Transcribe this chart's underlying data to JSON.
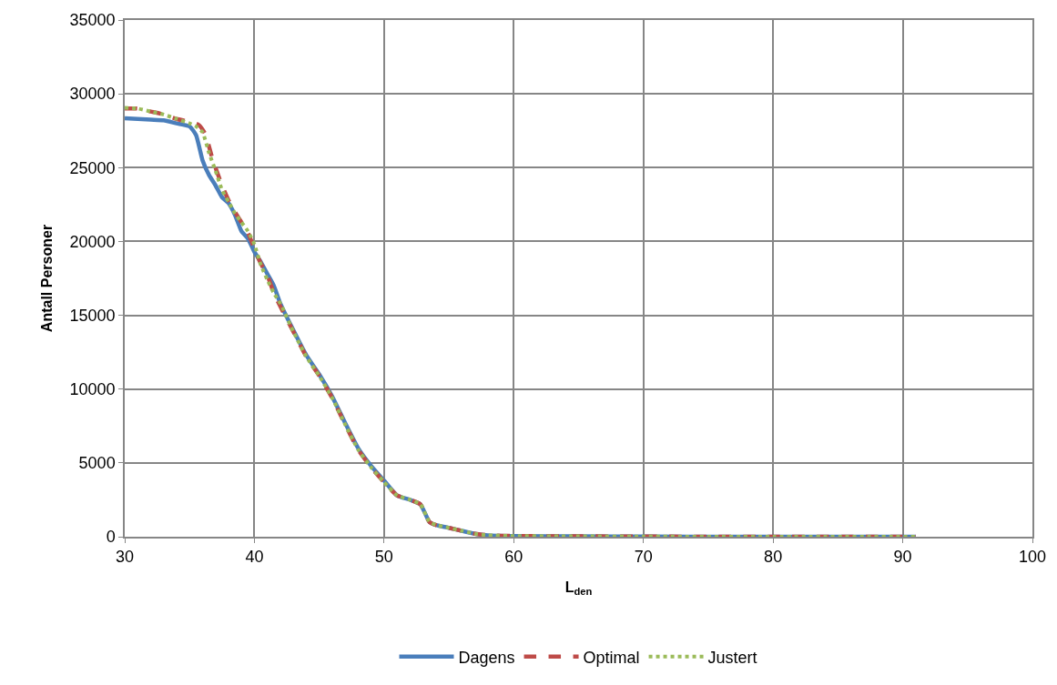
{
  "chart_data": {
    "type": "line",
    "xlabel": "L$_{den}$",
    "ylabel": "Antall Personer",
    "xlim": [
      30,
      100
    ],
    "xticks": [
      30,
      40,
      50,
      60,
      70,
      80,
      90,
      100
    ],
    "ylim": [
      0,
      35000
    ],
    "yticks": [
      0,
      5000,
      10000,
      15000,
      20000,
      25000,
      30000,
      35000
    ],
    "grid": true,
    "legend": "bottom",
    "marker": "none",
    "series": [
      {
        "name": "Dagens",
        "color": "#4a7ebb",
        "line_style": "solid",
        "x": [
          30,
          32,
          33,
          34,
          35,
          35.5,
          36,
          36.5,
          37,
          37.5,
          38,
          38.5,
          39,
          39.5,
          40,
          40.5,
          41,
          41.5,
          42,
          43,
          44,
          45,
          46,
          47,
          48,
          49,
          50,
          51,
          52,
          52.8,
          53.5,
          54,
          55,
          56,
          57,
          58,
          60,
          65,
          70,
          80,
          91
        ],
        "values": [
          28350,
          28250,
          28200,
          28000,
          27800,
          27200,
          25500,
          24500,
          23800,
          23000,
          22600,
          21800,
          20700,
          20200,
          19300,
          18600,
          17800,
          17000,
          15800,
          14000,
          12300,
          11000,
          9500,
          7700,
          6000,
          4800,
          3800,
          2800,
          2500,
          2200,
          1000,
          800,
          600,
          400,
          200,
          100,
          50,
          30,
          10,
          5,
          0
        ]
      },
      {
        "name": "Optimal",
        "color": "#be4b48",
        "line_style": "dashed",
        "x": [
          30,
          31,
          32,
          33,
          34,
          35,
          35.7,
          36.2,
          36.7,
          37,
          37.5,
          38,
          38.5,
          39,
          39.5,
          40,
          40.5,
          41,
          41.5,
          42,
          43,
          44,
          45,
          46,
          47,
          48,
          49,
          50,
          51,
          52,
          52.8,
          53.5,
          54,
          55,
          56,
          57,
          58,
          60,
          65,
          70,
          80,
          91
        ],
        "values": [
          29000,
          29000,
          28800,
          28600,
          28300,
          28100,
          27900,
          27300,
          25800,
          25000,
          23800,
          22800,
          22000,
          21300,
          20600,
          19500,
          18500,
          17700,
          16500,
          15600,
          13900,
          12200,
          10900,
          9400,
          7600,
          5900,
          4700,
          3700,
          2800,
          2500,
          2200,
          1000,
          800,
          600,
          400,
          200,
          100,
          50,
          30,
          10,
          5,
          0
        ]
      },
      {
        "name": "Justert",
        "color": "#9bbb59",
        "line_style": "dotted",
        "x": [
          30,
          31,
          32,
          33,
          34,
          35,
          35.5,
          36,
          36.5,
          37,
          37.5,
          38,
          38.5,
          39,
          39.5,
          40,
          40.5,
          41,
          41.5,
          42,
          43,
          44,
          45,
          46,
          47,
          48,
          49,
          50,
          51,
          52,
          52.8,
          53.5,
          54,
          55,
          56,
          57,
          58,
          60,
          65,
          70,
          80,
          91
        ],
        "values": [
          29050,
          29000,
          28800,
          28600,
          28300,
          28000,
          27800,
          27400,
          26000,
          24800,
          23500,
          22700,
          21900,
          21300,
          20700,
          19800,
          18400,
          17400,
          16500,
          15800,
          13900,
          12200,
          10900,
          9400,
          7600,
          5900,
          4700,
          3700,
          2800,
          2500,
          2200,
          1000,
          800,
          600,
          400,
          200,
          100,
          50,
          30,
          10,
          5,
          0
        ]
      }
    ]
  }
}
